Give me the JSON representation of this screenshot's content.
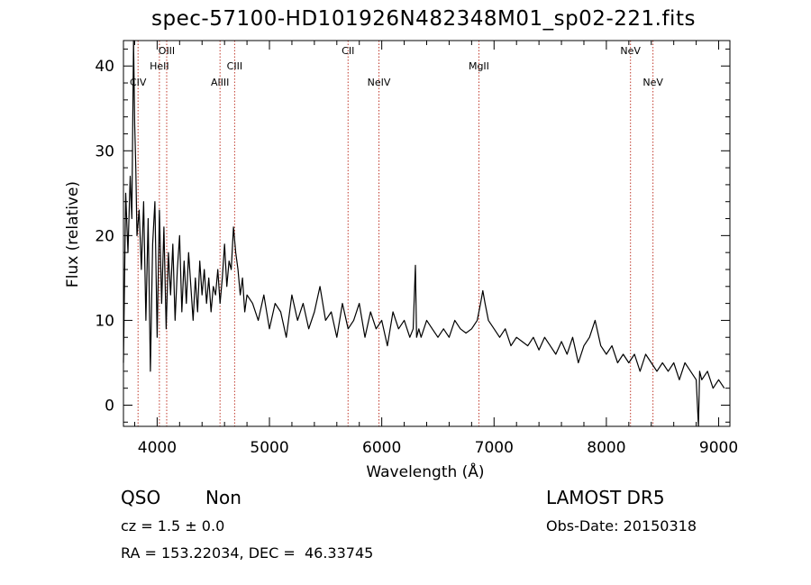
{
  "title": "spec-57100-HD101926N482348M01_sp02-221.fits",
  "chart_data": {
    "type": "line",
    "title": "spec-57100-HD101926N482348M01_sp02-221.fits",
    "xlabel": "Wavelength (Å)",
    "ylabel": "Flux (relative)",
    "xlim": [
      3700,
      9100
    ],
    "ylim": [
      -2.5,
      43
    ],
    "xticks": [
      4000,
      5000,
      6000,
      7000,
      8000,
      9000
    ],
    "yticks": [
      0,
      10,
      20,
      30,
      40
    ],
    "series": [
      {
        "x": [
          3700,
          3720,
          3740,
          3760,
          3775,
          3790,
          3800,
          3810,
          3820,
          3840,
          3860,
          3880,
          3900,
          3920,
          3940,
          3960,
          3980,
          4000,
          4020,
          4040,
          4060,
          4080,
          4100,
          4120,
          4140,
          4160,
          4180,
          4200,
          4220,
          4240,
          4260,
          4280,
          4300,
          4320,
          4340,
          4360,
          4380,
          4400,
          4420,
          4440,
          4460,
          4480,
          4500,
          4520,
          4540,
          4560,
          4580,
          4600,
          4620,
          4640,
          4660,
          4680,
          4700,
          4720,
          4740,
          4760,
          4780,
          4800,
          4850,
          4900,
          4950,
          5000,
          5050,
          5100,
          5150,
          5200,
          5250,
          5300,
          5350,
          5400,
          5450,
          5500,
          5550,
          5600,
          5650,
          5700,
          5750,
          5800,
          5850,
          5900,
          5950,
          6000,
          6050,
          6100,
          6150,
          6200,
          6250,
          6280,
          6300,
          6310,
          6330,
          6350,
          6400,
          6450,
          6500,
          6550,
          6600,
          6650,
          6700,
          6750,
          6800,
          6850,
          6880,
          6900,
          6920,
          6950,
          7000,
          7050,
          7100,
          7150,
          7200,
          7250,
          7300,
          7350,
          7400,
          7450,
          7500,
          7550,
          7600,
          7650,
          7700,
          7750,
          7800,
          7850,
          7900,
          7950,
          8000,
          8050,
          8100,
          8150,
          8200,
          8250,
          8300,
          8350,
          8400,
          8450,
          8500,
          8550,
          8600,
          8650,
          8700,
          8750,
          8800,
          8820,
          8830,
          8850,
          8900,
          8950,
          9000,
          9050
        ],
        "y": [
          5,
          25,
          18,
          27,
          22,
          43,
          33,
          28,
          20,
          23,
          16,
          24,
          10,
          22,
          4,
          19,
          24,
          8,
          23,
          12,
          21,
          9,
          18,
          13,
          19,
          10,
          16,
          20,
          11,
          17,
          12,
          18,
          14,
          10,
          15,
          11,
          17,
          13,
          16,
          12,
          15,
          11,
          14,
          13,
          16,
          12,
          15,
          19,
          14,
          17,
          16,
          21,
          18,
          16,
          13,
          15,
          11,
          13,
          12,
          10,
          13,
          9,
          12,
          11,
          8,
          13,
          10,
          12,
          9,
          11,
          14,
          10,
          11,
          8,
          12,
          9,
          10,
          12,
          8,
          11,
          9,
          10,
          7,
          11,
          9,
          10,
          8,
          9,
          16.5,
          8,
          9,
          8,
          10,
          9,
          8,
          9,
          8,
          10,
          9,
          8.5,
          9,
          10,
          12,
          13.5,
          12,
          10,
          9,
          8,
          9,
          7,
          8,
          7.5,
          7,
          8,
          6.5,
          8,
          7,
          6,
          7.5,
          6,
          8,
          5,
          7,
          8,
          10,
          7,
          6,
          7,
          5,
          6,
          5,
          6,
          4,
          6,
          5,
          4,
          5,
          4,
          5,
          3,
          5,
          4,
          3,
          -2.5,
          4,
          3,
          4,
          2,
          3,
          2
        ]
      }
    ]
  },
  "lines": [
    {
      "name": "CIV",
      "x": 3830,
      "row": 2
    },
    {
      "name": "HeII",
      "x": 4020,
      "row": 1
    },
    {
      "name": "OIII",
      "x": 4085,
      "row": 0
    },
    {
      "name": "AlIII",
      "x": 4560,
      "row": 2
    },
    {
      "name": "CIII",
      "x": 4690,
      "row": 1
    },
    {
      "name": "CII",
      "x": 5700,
      "row": 0
    },
    {
      "name": "NeIV",
      "x": 5975,
      "row": 2
    },
    {
      "name": "MgII",
      "x": 6865,
      "row": 1
    },
    {
      "name": "NeV",
      "x": 8215,
      "row": 0
    },
    {
      "name": "NeV",
      "x": 8415,
      "row": 2
    }
  ],
  "info": {
    "class": "QSO",
    "subclass": "Non",
    "cz": "cz = 1.5 ± 0.0",
    "coords": "RA = 153.22034, DEC =  46.33745",
    "survey": "LAMOST DR5",
    "obs_date": "Obs-Date: 20150318"
  }
}
